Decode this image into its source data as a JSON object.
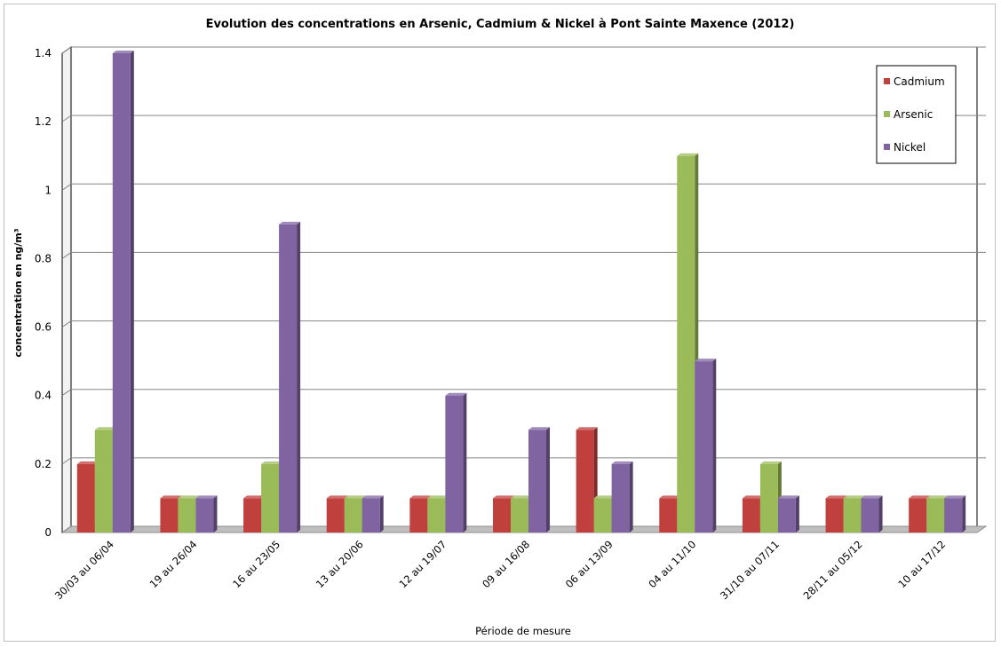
{
  "chart_data": {
    "type": "bar",
    "title": "Evolution des concentrations en Arsenic, Cadmium & Nickel à Pont Sainte Maxence (2012)",
    "xlabel": "Période de mesure",
    "ylabel": "concentration en ng/m³",
    "ylim": [
      0,
      1.4
    ],
    "yticks": [
      "0",
      "0.2",
      "0.4",
      "0.6",
      "0.8",
      "1",
      "1.2",
      "1.4"
    ],
    "grid": true,
    "legend_position": "top-right",
    "categories": [
      "30/03 au 06/04",
      "19 au 26/04",
      "16 au 23/05",
      "13 au 20/06",
      "12 au 19/07",
      "09 au 16/08",
      "06 au 13/09",
      "04 au 11/10",
      "31/10 au 07/11",
      "28/11 au 05/12",
      "10 au 17/12"
    ],
    "series": [
      {
        "name": "Cadmium",
        "color": "#c0403d",
        "values": [
          0.2,
          0.1,
          0.1,
          0.1,
          0.1,
          0.1,
          0.3,
          0.1,
          0.1,
          0.1,
          0.1
        ]
      },
      {
        "name": "Arsenic",
        "color": "#9bbb59",
        "values": [
          0.3,
          0.1,
          0.2,
          0.1,
          0.1,
          0.1,
          0.1,
          1.1,
          0.2,
          0.1,
          0.1
        ]
      },
      {
        "name": "Nickel",
        "color": "#8064a2",
        "values": [
          1.4,
          0.1,
          0.9,
          0.1,
          0.4,
          0.3,
          0.2,
          0.5,
          0.1,
          0.1,
          0.1
        ]
      }
    ]
  }
}
